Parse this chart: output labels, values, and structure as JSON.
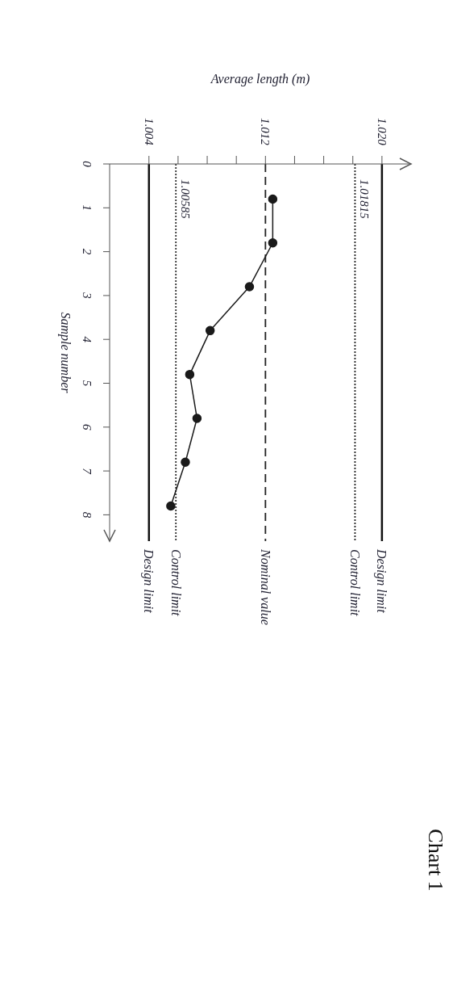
{
  "chart_data": {
    "type": "line",
    "orientation": "horizontal",
    "title": "Chart 1",
    "xlabel": "Average length (m)",
    "ylabel": "Sample number",
    "x": [
      0.8,
      1.8,
      2.8,
      3.8,
      4.8,
      5.8,
      6.8,
      7.8
    ],
    "series": [
      {
        "color": "#1a1a1a",
        "values": [
          1.0125,
          1.0125,
          1.0109,
          1.0082,
          1.0068,
          1.0073,
          1.0065,
          1.0055
        ]
      }
    ],
    "xlim": [
      1.0013,
      1.022
    ],
    "xticks": [
      1.004,
      {
        "value": 1.006,
        "label": null
      },
      {
        "value": 1.008,
        "label": null
      },
      {
        "value": 1.01,
        "label": null
      },
      1.012,
      {
        "value": 1.014,
        "label": null
      },
      {
        "value": 1.016,
        "label": null
      },
      {
        "value": 1.018,
        "label": null
      },
      {
        "value": 1.02,
        "label": "1.020"
      }
    ],
    "ylim": [
      8.6,
      0
    ],
    "yticks": [
      0,
      1,
      2,
      3,
      4,
      5,
      6,
      7,
      8
    ],
    "marker": "circle",
    "line_style": "solid",
    "ref_lines": [
      {
        "axis": "x",
        "value": 1.02,
        "label": "Design limit",
        "color": "#111111",
        "line_style": "solid"
      },
      {
        "axis": "x",
        "value": 1.01815,
        "label": "Control limit",
        "color": "#222222",
        "line_style": "dotted"
      },
      {
        "axis": "x",
        "value": 1.012,
        "label": "Nominal value",
        "color": "#222222",
        "line_style": "dashed"
      },
      {
        "axis": "x",
        "value": 1.00585,
        "label": "Control limit",
        "color": "#333333",
        "line_style": "dotted"
      },
      {
        "axis": "x",
        "value": 1.004,
        "label": "Design limit",
        "color": "#111111",
        "line_style": "solid"
      }
    ],
    "annotations": [
      {
        "text": "1.01815",
        "x": 1.01815,
        "y": 0.8
      },
      {
        "text": "1.00585",
        "x": 1.00585,
        "y": 0.8
      }
    ]
  }
}
